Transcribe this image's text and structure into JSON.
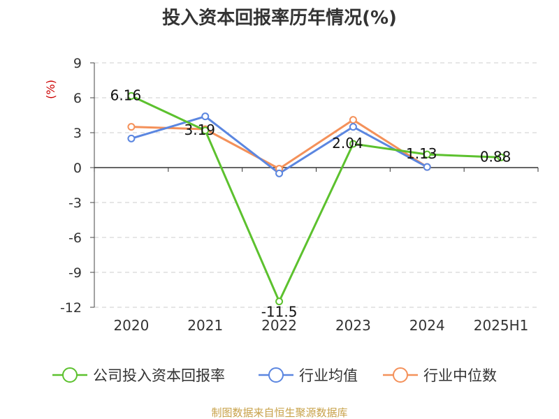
{
  "chart_data": {
    "type": "line",
    "title": "投入资本回报率历年情况(%)",
    "ylabel": "(%)",
    "xlabel": "",
    "categories": [
      "2020",
      "2021",
      "2022",
      "2023",
      "2024",
      "2025H1"
    ],
    "ylim": [
      -12,
      9
    ],
    "yticks": [
      9,
      6,
      3,
      0,
      -3,
      -6,
      -9,
      -12
    ],
    "grid": true,
    "legend_position": "bottom",
    "series": [
      {
        "name": "公司投入资本回报率",
        "color": "#5cc12e",
        "values": [
          6.16,
          3.19,
          -11.5,
          2.04,
          1.13,
          0.88
        ],
        "labels": [
          "6.16",
          "3.19",
          "-11.5",
          "2.04",
          "1.13",
          "0.88"
        ]
      },
      {
        "name": "行业均值",
        "color": "#5b86e0",
        "values": [
          2.5,
          4.4,
          -0.5,
          3.5,
          0.05,
          null
        ],
        "labels": []
      },
      {
        "name": "行业中位数",
        "color": "#f4915a",
        "values": [
          3.5,
          3.3,
          -0.1,
          4.1,
          0.05,
          null
        ],
        "labels": []
      }
    ]
  },
  "source": "制图数据来自恒生聚源数据库"
}
